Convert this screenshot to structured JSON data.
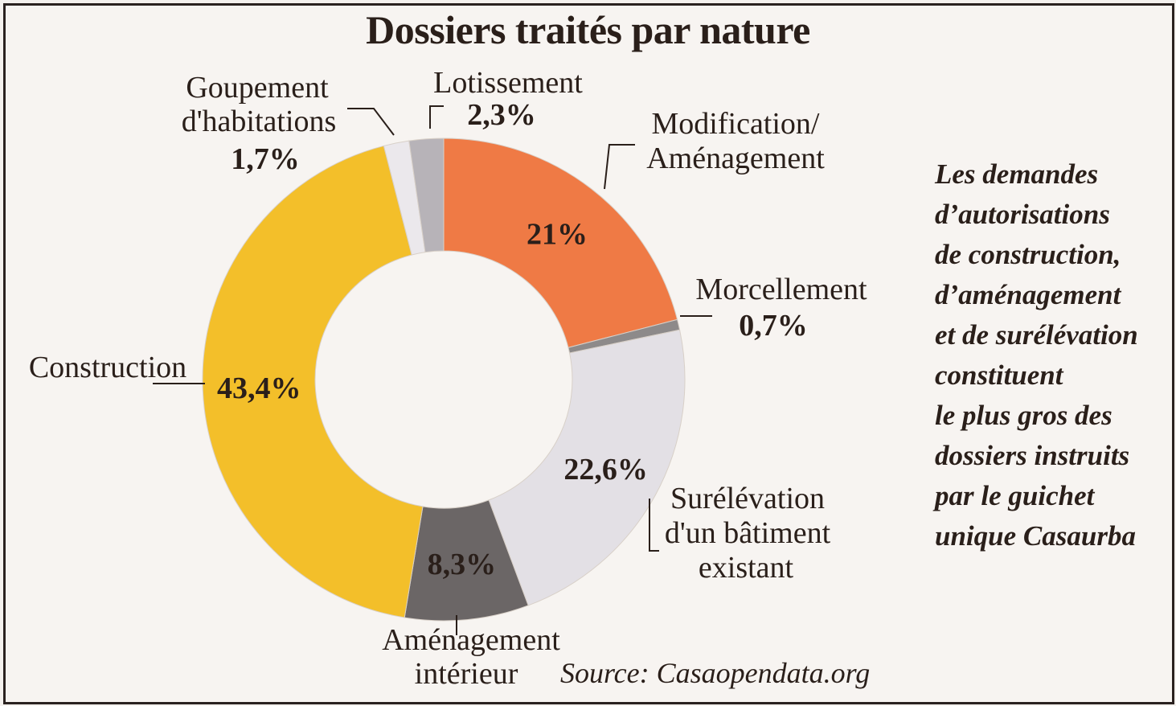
{
  "chart_data": {
    "type": "pie",
    "variant": "donut",
    "title": "Dossiers traités par nature",
    "slices": [
      {
        "label": "Modification/ Aménagement",
        "value": 21,
        "value_text": "21%",
        "color": "#ef7a45"
      },
      {
        "label": "Morcellement",
        "value": 0.7,
        "value_text": "0,7%",
        "color": "#8d8a8a"
      },
      {
        "label": "Surélévation d'un bâtiment existant",
        "value": 22.6,
        "value_text": "22,6%",
        "color": "#e3e0e5"
      },
      {
        "label": "Aménagement intérieur",
        "value": 8.3,
        "value_text": "8,3%",
        "color": "#6b6666"
      },
      {
        "label": "Construction",
        "value": 43.4,
        "value_text": "43,4%",
        "color": "#f3bf2a"
      },
      {
        "label": "Goupement d'habitations",
        "value": 1.7,
        "value_text": "1,7%",
        "color": "#ebe8ec"
      },
      {
        "label": "Lotissement",
        "value": 2.3,
        "value_text": "2,3%",
        "color": "#b7b3b8"
      }
    ],
    "start_angle_deg": 0,
    "direction": "clockwise"
  },
  "labels": {
    "lotissement": {
      "lines": [
        "Lotissement"
      ],
      "pct": "2,3%"
    },
    "modification": {
      "lines": [
        "Modification/",
        "Aménagement"
      ]
    },
    "morcellement": {
      "lines": [
        "Morcellement"
      ],
      "pct": "0,7%"
    },
    "surelevation": {
      "lines": [
        "Surélévation",
        "d'un bâtiment",
        "existant"
      ]
    },
    "amenagement_interieur": {
      "lines": [
        "Aménagement",
        "intérieur"
      ]
    },
    "construction": {
      "lines": [
        "Construction"
      ]
    },
    "groupement": {
      "lines": [
        "Goupement",
        "d'habitations"
      ],
      "pct": "1,7%"
    }
  },
  "side_note": "Les demandes\nd’autorisations\nde construction,\nd’aménagement\net de surélévation constituent\nle plus gros des\ndossiers instruits\npar le guichet\nunique Casaurba",
  "source": "Source: Casaopendata.org"
}
